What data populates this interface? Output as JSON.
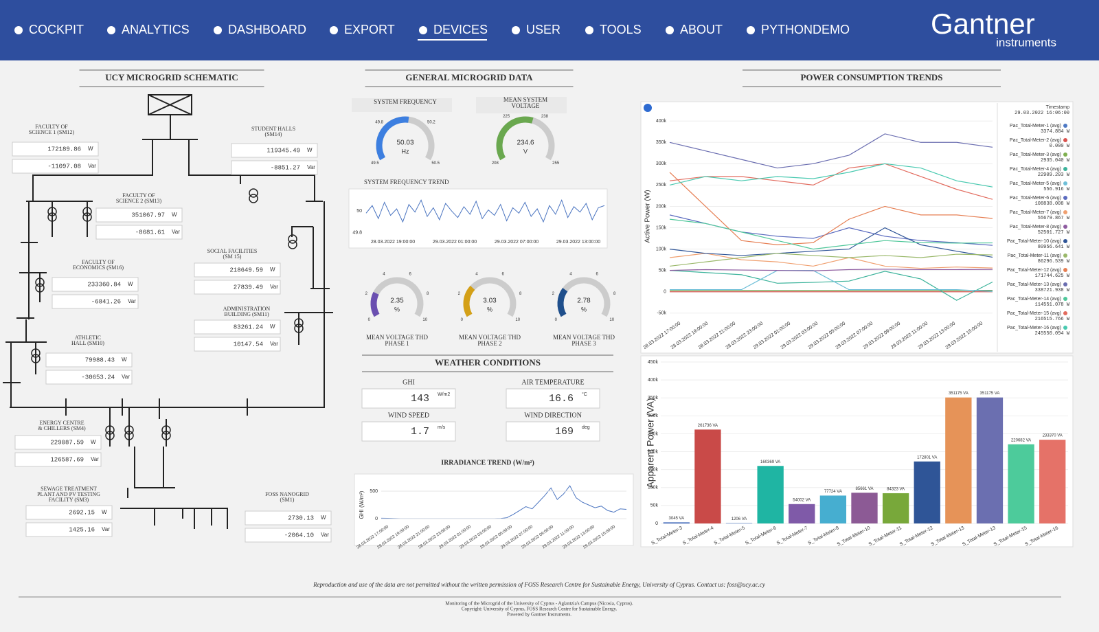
{
  "nav": {
    "items": [
      "COCKPIT",
      "ANALYTICS",
      "DASHBOARD",
      "EXPORT",
      "DEVICES",
      "USER",
      "TOOLS",
      "ABOUT",
      "PYTHONDEMO"
    ],
    "active": 4
  },
  "logo": {
    "name": "Gantner",
    "sub": "instruments"
  },
  "schematic": {
    "title": "UCY MICROGRID SCHEMATIC",
    "units": {
      "p": "W",
      "q": "Var"
    },
    "meters": [
      {
        "label": [
          "FACULTY OF",
          "SCIENCE 1 (SM12)"
        ],
        "p": "172189.86",
        "q": "-11097.08"
      },
      {
        "label": [
          "STUDENT HALLS",
          "(SM14)"
        ],
        "p": "119345.49",
        "q": "-8851.27"
      },
      {
        "label": [
          "FACULTY OF",
          "SCIENCE 2 (SM13)"
        ],
        "p": "351067.97",
        "q": "-8681.61"
      },
      {
        "label": [
          "SOCIAL FACILITIES",
          "(SM 15)"
        ],
        "p": "218649.59",
        "q": "27839.49"
      },
      {
        "label": [
          "FACULTY OF",
          "ECONOMICS (SM16)"
        ],
        "p": "233360.84",
        "q": "-6841.26"
      },
      {
        "label": [
          "ADMINISTRATION",
          "BUILDING (SM11)"
        ],
        "p": "83261.24",
        "q": "10147.54"
      },
      {
        "label": [
          "ATHLETIC",
          "HALL (SM10)"
        ],
        "p": "79988.43",
        "q": "-30653.24"
      },
      {
        "label": [
          "ENERGY CENTRE",
          "& CHILLERS (SM4)"
        ],
        "p": "229087.59",
        "q": "126587.69"
      },
      {
        "label": [
          "SEWAGE TREATMENT",
          "PLANT AND PV TESTING",
          "FACILITY (SM3)"
        ],
        "p": "2692.15",
        "q": "1425.16"
      },
      {
        "label": [
          "FOSS NANOGRID",
          "(SM1)"
        ],
        "p": "2730.13",
        "q": "-2064.10"
      }
    ]
  },
  "general": {
    "title": "GENERAL MICROGRID DATA",
    "top_gauges": [
      {
        "label": [
          "SYSTEM FREQUENCY"
        ],
        "value": 50.03,
        "unit": "Hz",
        "min": 49.5,
        "max": 50.5,
        "ticks": [
          49.5,
          49.8,
          50.2,
          50.5
        ],
        "color": "#3d7fe0"
      },
      {
        "label": [
          "MEAN SYSTEM",
          "VOLTAGE"
        ],
        "value": 234.6,
        "unit": "V",
        "min": 208,
        "max": 255,
        "ticks": [
          208,
          225,
          238,
          255
        ],
        "color": "#6aa84f"
      }
    ],
    "thd_gauges": [
      {
        "label": [
          "MEAN VOLTAGE THD",
          "PHASE 1"
        ],
        "value": 2.35,
        "unit": "%",
        "min": 0,
        "max": 10,
        "ticks": [
          0,
          2,
          4,
          6,
          8,
          10
        ],
        "color": "#6a4fb0"
      },
      {
        "label": [
          "MEAN VOLTAGE THD",
          "PHASE 2"
        ],
        "value": 3.03,
        "unit": "%",
        "min": 0,
        "max": 10,
        "ticks": [
          0,
          2,
          4,
          6,
          8,
          10
        ],
        "color": "#d4a017"
      },
      {
        "label": [
          "MEAN VOLTAGE THD",
          "PHASE 3"
        ],
        "value": 2.78,
        "unit": "%",
        "min": 0,
        "max": 10,
        "ticks": [
          0,
          2,
          4,
          6,
          8,
          10
        ],
        "color": "#1f4f8c"
      }
    ],
    "freq_trend": {
      "title": "SYSTEM FREQUENCY TREND",
      "ylim": [
        49.78,
        50.14
      ],
      "yticks": [
        49.8,
        50
      ],
      "x_labels": [
        "28.03.2022 19:00:00",
        "29.03.2022 01:00:00",
        "29.03.2022 07:00:00",
        "29.03.2022 13:00:00"
      ],
      "color": "#4a74c0",
      "values": [
        49.98,
        50.05,
        49.93,
        50.08,
        49.96,
        50.02,
        49.9,
        50.06,
        49.99,
        50.1,
        49.95,
        50.03,
        49.92,
        50.07,
        50.0,
        49.94,
        50.04,
        49.97,
        50.09,
        49.93,
        50.01,
        49.96,
        50.06,
        49.91,
        50.03,
        49.98,
        50.08,
        49.95,
        50.02,
        49.9,
        50.05,
        49.97,
        50.1,
        49.94,
        50.04,
        49.99,
        50.07,
        49.92,
        50.03,
        50.05
      ]
    }
  },
  "weather": {
    "title": "WEATHER CONDITIONS",
    "fields": [
      {
        "label": "GHI",
        "value": "143",
        "unit": "W/m2"
      },
      {
        "label": "AIR TEMPERATURE",
        "value": "16.6",
        "unit": "°C"
      },
      {
        "label": "WIND SPEED",
        "value": "1.7",
        "unit": "m/s"
      },
      {
        "label": "WIND DIRECTION",
        "value": "169",
        "unit": "deg"
      }
    ]
  },
  "irradiance": {
    "title": "IRRADIANCE TREND (W/m²)",
    "ylabel": "GHI (W/m²)",
    "ylim": [
      -60,
      650
    ],
    "yticks": [
      0,
      500
    ],
    "color": "#4a74c0",
    "x_labels": [
      "28.03.2022 17:00:00",
      "28.03.2022 19:00:00",
      "28.03.2022 21:00:00",
      "28.03.2022 23:00:00",
      "29.03.2022 01:00:00",
      "29.03.2022 03:00:00",
      "29.03.2022 05:00:00",
      "29.03.2022 07:00:00",
      "29.03.2022 09:00:00",
      "29.03.2022 11:00:00",
      "29.03.2022 13:00:00",
      "29.03.2022 15:00:00"
    ],
    "values": [
      10,
      8,
      5,
      3,
      2,
      2,
      2,
      2,
      2,
      2,
      2,
      2,
      2,
      2,
      2,
      2,
      2,
      2,
      3,
      5,
      20,
      80,
      150,
      220,
      180,
      300,
      420,
      560,
      350,
      450,
      600,
      380,
      300,
      250,
      200,
      230,
      150,
      120,
      180,
      170
    ]
  },
  "power_trends": {
    "title": "POWER CONSUMPTION TRENDS",
    "ylabel": "Active Power (W)",
    "ylim": [
      -60000,
      410000
    ],
    "yticks": [
      {
        "value": -50000,
        "label": "-50k"
      },
      0,
      {
        "value": 50000,
        "label": "50k"
      },
      {
        "value": 100000,
        "label": "100k"
      },
      {
        "value": 150000,
        "label": "150k"
      },
      {
        "value": 200000,
        "label": "200k"
      },
      {
        "value": 250000,
        "label": "250k"
      },
      {
        "value": 300000,
        "label": "300k"
      },
      {
        "value": 350000,
        "label": "350k"
      },
      {
        "value": 400000,
        "label": "400k"
      }
    ],
    "x_labels": [
      "28.03.2022 17:00:00",
      "28.03.2022 19:00:00",
      "28.03.2022 21:00:00",
      "28.03.2022 23:00:00",
      "29.03.2022 01:00:00",
      "29.03.2022 03:00:00",
      "29.03.2022 05:00:00",
      "29.03.2022 07:00:00",
      "29.03.2022 09:00:00",
      "29.03.2022 11:00:00",
      "29.03.2022 13:00:00",
      "29.03.2022 15:00:00"
    ],
    "legend_title": "Timestamp",
    "timestamp": "29.03.2022 16:06:00",
    "series": [
      {
        "name": "Pac_Total-Meter-1 (avg)",
        "current": "3374.884 W",
        "color": "#4e79c4",
        "values": [
          3000,
          3000,
          3000,
          3000,
          3000,
          3000,
          3000,
          3000,
          3000,
          3400
        ]
      },
      {
        "name": "Pac_Total-Meter-2 (avg)",
        "current": "0.000 W",
        "color": "#d9534f",
        "values": [
          0,
          0,
          0,
          0,
          0,
          0,
          0,
          0,
          0,
          0
        ]
      },
      {
        "name": "Pac_Total-Meter-3 (avg)",
        "current": "2935.040 W",
        "color": "#7fb04f",
        "values": [
          3000,
          3000,
          3000,
          3000,
          3000,
          3000,
          3000,
          3000,
          3000,
          2900
        ]
      },
      {
        "name": "Pac_Total-Meter-4 (avg)",
        "current": "22909.203 W",
        "color": "#3cb39b",
        "values": [
          50000,
          45000,
          40000,
          20000,
          22000,
          25000,
          48000,
          30000,
          -20000,
          22900
        ]
      },
      {
        "name": "Pac_Total-Meter-5 (avg)",
        "current": "556.916 W",
        "color": "#6fbfd8",
        "values": [
          5000,
          5000,
          5000,
          50000,
          50000,
          5000,
          5000,
          5000,
          5000,
          556
        ]
      },
      {
        "name": "Pac_Total-Meter-6 (avg)",
        "current": "108838.008 W",
        "color": "#5b6bbf",
        "values": [
          180000,
          160000,
          140000,
          130000,
          125000,
          150000,
          130000,
          120000,
          115000,
          108838
        ]
      },
      {
        "name": "Pac_Total-Meter-7 (avg)",
        "current": "55679.867 W",
        "color": "#f0a070",
        "values": [
          80000,
          90000,
          75000,
          70000,
          60000,
          80000,
          60000,
          55000,
          58000,
          55680
        ]
      },
      {
        "name": "Pac_Total-Meter-8 (avg)",
        "current": "52501.727 W",
        "color": "#8e5ba0",
        "values": [
          50000,
          52000,
          51000,
          50000,
          49000,
          52000,
          53000,
          52000,
          52000,
          52502
        ]
      },
      {
        "name": "Pac_Total-Meter-10 (avg)",
        "current": "80956.641 W",
        "color": "#2f5597",
        "values": [
          100000,
          90000,
          85000,
          90000,
          95000,
          100000,
          150000,
          110000,
          95000,
          80957
        ]
      },
      {
        "name": "Pac_Total-Meter-11 (avg)",
        "current": "86296.539 W",
        "color": "#9ab86a",
        "values": [
          60000,
          70000,
          80000,
          90000,
          85000,
          80000,
          85000,
          80000,
          88000,
          86297
        ]
      },
      {
        "name": "Pac_Total-Meter-12 (avg)",
        "current": "171744.625 W",
        "color": "#e67e52",
        "values": [
          280000,
          200000,
          120000,
          110000,
          115000,
          170000,
          200000,
          180000,
          180000,
          171745
        ]
      },
      {
        "name": "Pac_Total-Meter-13 (avg)",
        "current": "338721.938 W",
        "color": "#6a6db0",
        "values": [
          350000,
          330000,
          310000,
          290000,
          300000,
          320000,
          370000,
          350000,
          350000,
          338722
        ]
      },
      {
        "name": "Pac_Total-Meter-14 (avg)",
        "current": "114551.078 W",
        "color": "#4fc79a",
        "values": [
          170000,
          160000,
          140000,
          120000,
          100000,
          110000,
          120000,
          115000,
          114000,
          114551
        ]
      },
      {
        "name": "Pac_Total-Meter-15 (avg)",
        "current": "216515.766 W",
        "color": "#e26b5e",
        "values": [
          260000,
          270000,
          270000,
          260000,
          250000,
          290000,
          300000,
          270000,
          240000,
          216516
        ]
      },
      {
        "name": "Pac_Total-Meter-16 (avg)",
        "current": "245550.094 W",
        "color": "#48c9b0",
        "values": [
          250000,
          270000,
          260000,
          270000,
          265000,
          280000,
          300000,
          290000,
          260000,
          245550
        ]
      }
    ]
  },
  "apparent_power": {
    "ylabel": "Apparent Power (VA)",
    "ylim": [
      0,
      450000
    ],
    "yticks": [
      0,
      {
        "value": 50000,
        "label": "50k"
      },
      {
        "value": 100000,
        "label": "100k"
      },
      {
        "value": 150000,
        "label": "150k"
      },
      {
        "value": 200000,
        "label": "200k"
      },
      {
        "value": 250000,
        "label": "250k"
      },
      {
        "value": 300000,
        "label": "300k"
      },
      {
        "value": 350000,
        "label": "350k"
      },
      {
        "value": 400000,
        "label": "400k"
      },
      {
        "value": 450000,
        "label": "450k"
      }
    ],
    "categories": [
      "S_Total-Meter-3",
      "S_Total-Meter-4",
      "S_Total-Meter-5",
      "S_Total-Meter-6",
      "S_Total-Meter-7",
      "S_Total-Meter-8",
      "S_Total-Meter-10",
      "S_Total-Meter-11",
      "S_Total-Meter-12",
      "S_Total-Meter-13",
      "S_Total-Meter-13",
      "S_Total-Meter-15",
      "S_Total-Meter-16"
    ],
    "values": [
      3045,
      261736,
      1206,
      160369,
      54002,
      77724,
      85661,
      84323,
      172801,
      351175,
      351175,
      220682,
      233370
    ],
    "value_labels": [
      "3045 VA",
      "261736 VA",
      "1206 VA",
      "160369 VA",
      "54002 VA",
      "77724 VA",
      "85661 VA",
      "84323 VA",
      "172801 VA",
      "351175 VA",
      "351175 VA",
      "220682 VA",
      "233370 VA"
    ],
    "colors": [
      "#3a63b8",
      "#c94a48",
      "#4e7cc4",
      "#1fb5a3",
      "#7f5aa8",
      "#46aed0",
      "#8c5a95",
      "#78a83a",
      "#2f5597",
      "#e69358",
      "#6b6fb0",
      "#4dcb9b",
      "#e57268"
    ]
  },
  "footer": {
    "disclaimer": "Reproduction and use of the data are not permitted without the written permission of FOSS Research Centre for Sustainable Energy, University of Cyprus. Contact us: foss@ucy.ac.cy",
    "lines": [
      "Monitoring of the Microgrid of the University of Cyprus - Aglantzia's Campus (Nicosia, Cyprus).",
      "Copyright: University of Cyprus, FOSS Research Centre for Sustainable Energy.",
      "Powered by Gantner Instruments."
    ]
  }
}
